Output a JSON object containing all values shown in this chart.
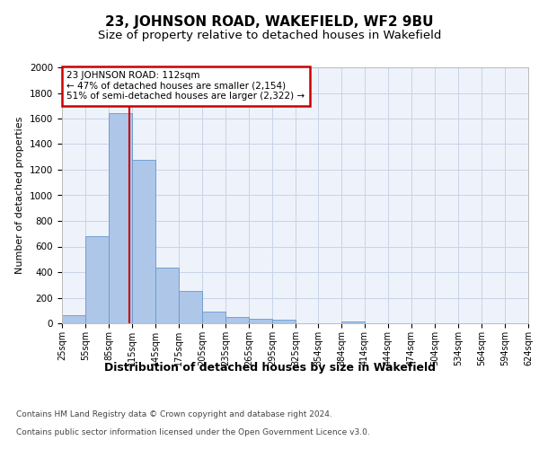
{
  "title": "23, JOHNSON ROAD, WAKEFIELD, WF2 9BU",
  "subtitle": "Size of property relative to detached houses in Wakefield",
  "xlabel": "Distribution of detached houses by size in Wakefield",
  "ylabel": "Number of detached properties",
  "footer_line1": "Contains HM Land Registry data © Crown copyright and database right 2024.",
  "footer_line2": "Contains public sector information licensed under the Open Government Licence v3.0.",
  "annotation_title": "23 JOHNSON ROAD: 112sqm",
  "annotation_line1": "← 47% of detached houses are smaller (2,154)",
  "annotation_line2": "51% of semi-detached houses are larger (2,322) →",
  "property_line_x": 112,
  "bar_lefts": [
    25,
    55,
    85,
    115,
    145,
    175,
    205,
    235,
    265,
    295,
    325,
    354,
    384,
    414,
    444,
    474,
    504,
    534,
    564,
    594
  ],
  "bar_widths": [
    30,
    30,
    30,
    30,
    30,
    30,
    30,
    30,
    30,
    30,
    29,
    30,
    30,
    30,
    30,
    30,
    30,
    30,
    30,
    30
  ],
  "bar_heights": [
    65,
    680,
    1640,
    1280,
    435,
    255,
    90,
    50,
    35,
    25,
    0,
    0,
    15,
    0,
    0,
    0,
    0,
    0,
    0,
    0
  ],
  "bar_color": "#aec6e8",
  "bar_edge_color": "#6699cc",
  "vline_color": "#cc0000",
  "ylim": [
    0,
    2000
  ],
  "yticks": [
    0,
    200,
    400,
    600,
    800,
    1000,
    1200,
    1400,
    1600,
    1800,
    2000
  ],
  "xlim": [
    25,
    624
  ],
  "xtick_labels": [
    "25sqm",
    "55sqm",
    "85sqm",
    "115sqm",
    "145sqm",
    "175sqm",
    "205sqm",
    "235sqm",
    "265sqm",
    "295sqm",
    "325sqm",
    "354sqm",
    "384sqm",
    "414sqm",
    "444sqm",
    "474sqm",
    "504sqm",
    "534sqm",
    "564sqm",
    "594sqm",
    "624sqm"
  ],
  "xtick_positions": [
    25,
    55,
    85,
    115,
    145,
    175,
    205,
    235,
    265,
    295,
    325,
    354,
    384,
    414,
    444,
    474,
    504,
    534,
    564,
    594,
    624
  ],
  "grid_color": "#c8d4e8",
  "bg_color": "#eef2fa",
  "annotation_box_color": "#cc0000",
  "title_fontsize": 11,
  "subtitle_fontsize": 9.5,
  "xlabel_fontsize": 9,
  "ylabel_fontsize": 8,
  "tick_fontsize": 7,
  "footer_fontsize": 6.5
}
